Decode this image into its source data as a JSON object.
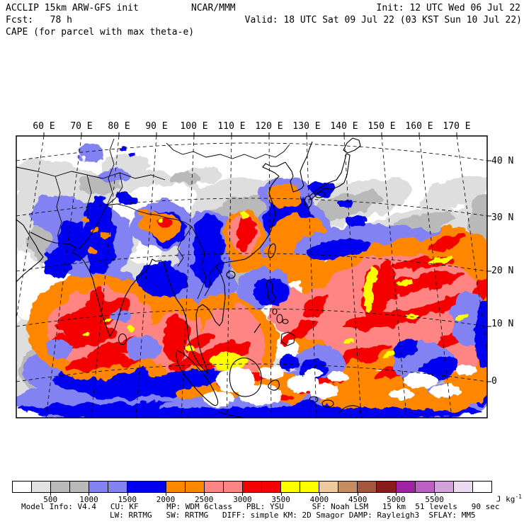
{
  "header": {
    "model": "ACCLIP 15km ARW-GFS init",
    "center": "NCAR/MMM",
    "init": "Init: 12 UTC Wed 06 Jul 22",
    "fcst": "Fcst:   78 h",
    "valid": "Valid: 18 UTC Sat 09 Jul 22 (03 KST Sun 10 Jul 22)",
    "field": "CAPE (for parcel with max theta-e)"
  },
  "map": {
    "lon_labels": [
      "60 E",
      "70 E",
      "80 E",
      "90 E",
      "100 E",
      "110 E",
      "120 E",
      "130 E",
      "140 E",
      "150 E",
      "160 E",
      "170 E"
    ],
    "lat_labels": [
      "40 N",
      "30 N",
      "20 N",
      "10 N",
      "0"
    ]
  },
  "colorbar": {
    "tick_labels": [
      "500",
      "1000",
      "1500",
      "2000",
      "2500",
      "3000",
      "3500",
      "4000",
      "4500",
      "5000",
      "5500"
    ],
    "unit": "J kg",
    "unit_exp": "-1",
    "segment_colors": [
      "#ffffff",
      "#e2e2e2",
      "#b9b9b9",
      "#b9b9b9",
      "#8282f2",
      "#8282f2",
      "#0000f0",
      "#0000f0",
      "#ff8700",
      "#ff8700",
      "#ff8585",
      "#ff8585",
      "#f50000",
      "#f50000",
      "#ffff00",
      "#ffff00",
      "#ecca9e",
      "#c68d63",
      "#a5563c",
      "#8c1c1c",
      "#a023a6",
      "#bb60c2",
      "#d3a0dc",
      "#ecdaf0",
      "#ffffff"
    ]
  },
  "footer": {
    "line1": "Model Info: V4.4   CU: KF      MP: WDM 6class   PBL: YSU      SF: Noah LSM   15 km  51 levels   90 sec",
    "line2": "LW: RRTMG   SW: RRTMG   DIFF: simple KM: 2D Smagor DAMP: Rayleigh3  SFLAY: MM5"
  },
  "chart_data": {
    "type": "heatmap",
    "title": "CAPE (for parcel with max theta-e)",
    "unit": "J kg-1",
    "scale_min": 0,
    "bin_width": 250,
    "tick_values": [
      500,
      1000,
      1500,
      2000,
      2500,
      3000,
      3500,
      4000,
      4500,
      5000,
      5500
    ],
    "lon_ticks_deg_east": [
      60,
      70,
      80,
      90,
      100,
      110,
      120,
      130,
      140,
      150,
      160,
      170
    ],
    "lat_ticks_deg_north": [
      40,
      30,
      20,
      10,
      0
    ],
    "legend_position": "bottom",
    "notes": "Filled-contour CAPE field over Asia/West Pacific; high CAPE (2000-4000+ J/kg) over Arabian Sea, Bay of Bengal, South China Sea and tropical West Pacific; low values (gray/white) over continental interior"
  }
}
